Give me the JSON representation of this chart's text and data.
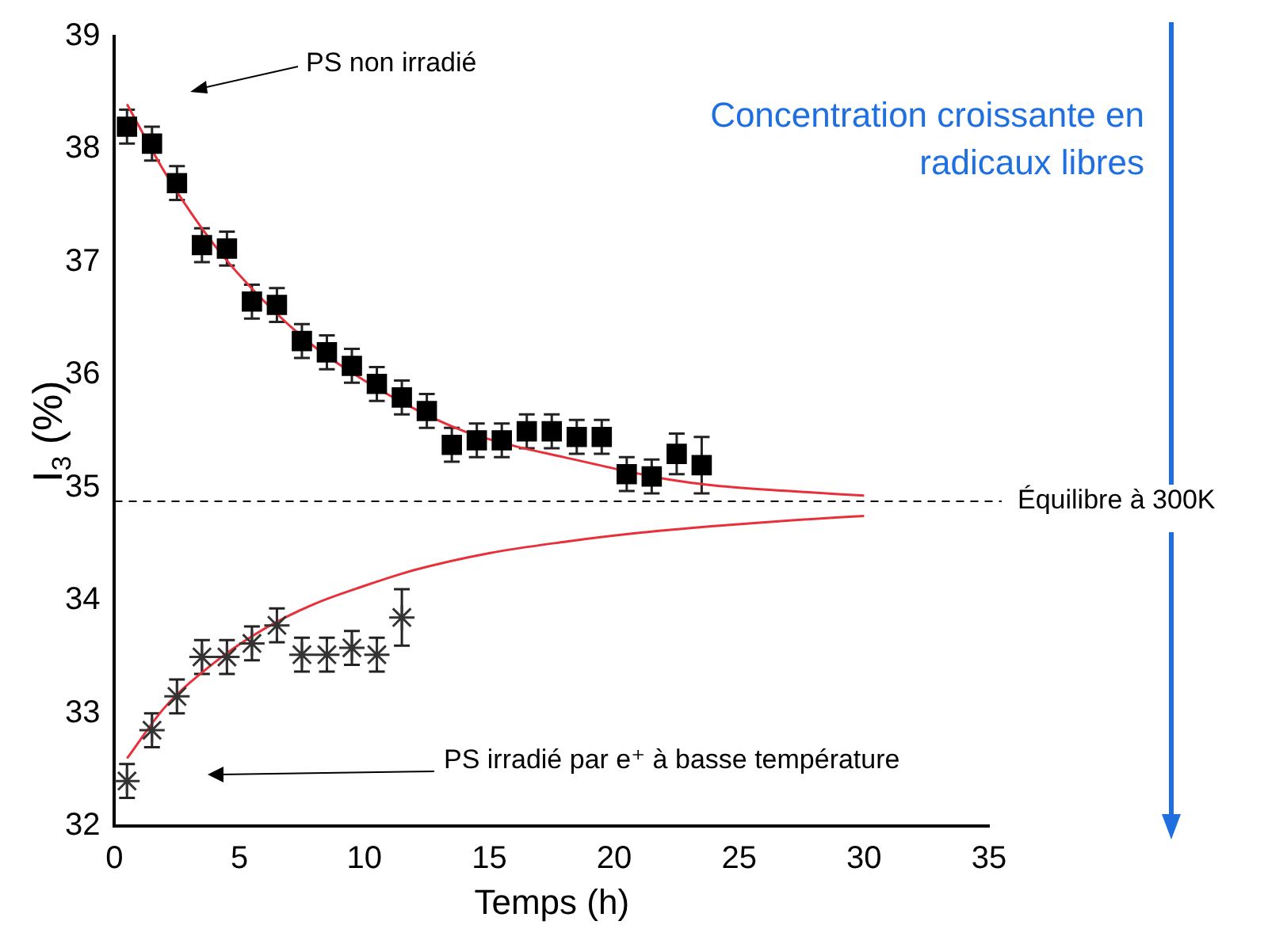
{
  "chart_data": {
    "type": "scatter",
    "xlabel": "Temps (h)",
    "ylabel": "I$_{3}$ (%)",
    "xlim": [
      0,
      35
    ],
    "xticks": [
      0,
      5,
      10,
      15,
      20,
      25,
      30,
      35
    ],
    "ylim": [
      32,
      39
    ],
    "yticks": [
      32,
      33,
      34,
      35,
      36,
      37,
      38,
      39
    ],
    "grid": false,
    "legend": false,
    "series": [
      {
        "type": "scatter",
        "marker": "square",
        "color": "#000000",
        "x": [
          0.5,
          1.5,
          2.5,
          3.5,
          4.5,
          5.5,
          6.5,
          7.5,
          8.5,
          9.5,
          10.5,
          11.5,
          12.5,
          13.5,
          14.5,
          15.5,
          16.5,
          17.5,
          18.5,
          19.5,
          20.5,
          21.5,
          22.5,
          23.5
        ],
        "values": [
          38.2,
          38.05,
          37.7,
          37.15,
          37.12,
          36.65,
          36.62,
          36.3,
          36.2,
          36.08,
          35.92,
          35.8,
          35.68,
          35.38,
          35.42,
          35.42,
          35.5,
          35.5,
          35.45,
          35.45,
          35.12,
          35.1,
          35.3,
          35.2
        ],
        "errors": [
          0.15,
          0.15,
          0.15,
          0.15,
          0.15,
          0.15,
          0.15,
          0.15,
          0.15,
          0.15,
          0.15,
          0.15,
          0.15,
          0.15,
          0.15,
          0.15,
          0.15,
          0.15,
          0.15,
          0.15,
          0.15,
          0.15,
          0.18,
          0.25
        ]
      },
      {
        "type": "scatter",
        "marker": "cross",
        "color": "#333333",
        "x": [
          0.5,
          1.5,
          2.5,
          3.5,
          4.5,
          5.5,
          6.5,
          7.5,
          8.5,
          9.5,
          10.5,
          11.5
        ],
        "values": [
          32.4,
          32.85,
          33.15,
          33.5,
          33.5,
          33.62,
          33.78,
          33.52,
          33.52,
          33.58,
          33.52,
          33.85
        ],
        "errors": [
          0.15,
          0.15,
          0.15,
          0.15,
          0.15,
          0.15,
          0.15,
          0.15,
          0.15,
          0.15,
          0.15,
          0.25
        ]
      },
      {
        "type": "line",
        "marker": "none",
        "line_style": "solid",
        "color": "#e8303a",
        "x": [
          0.5,
          2,
          4,
          6,
          8,
          10,
          12,
          14,
          16,
          18,
          20,
          22,
          24,
          27,
          30
        ],
        "values": [
          38.4,
          37.8,
          37.15,
          36.65,
          36.25,
          35.95,
          35.7,
          35.5,
          35.37,
          35.27,
          35.17,
          35.08,
          35.02,
          34.97,
          34.93
        ]
      },
      {
        "type": "line",
        "marker": "none",
        "line_style": "solid",
        "color": "#e8303a",
        "x": [
          0.5,
          2,
          4,
          6,
          8,
          10,
          12,
          15,
          18,
          21,
          24,
          27,
          30
        ],
        "values": [
          32.6,
          33.05,
          33.45,
          33.75,
          33.97,
          34.13,
          34.27,
          34.42,
          34.52,
          34.6,
          34.66,
          34.71,
          34.75
        ]
      }
    ],
    "ref_lines": [
      {
        "axis": "y",
        "value": 34.88,
        "label": "Équilibre à 300K",
        "color": "#000000",
        "line_style": "dashed"
      }
    ],
    "annotations": [
      "Concentration croissante en radicaux libres",
      "PS non irradié",
      "PS irradié par e⁺ à basse température"
    ]
  }
}
